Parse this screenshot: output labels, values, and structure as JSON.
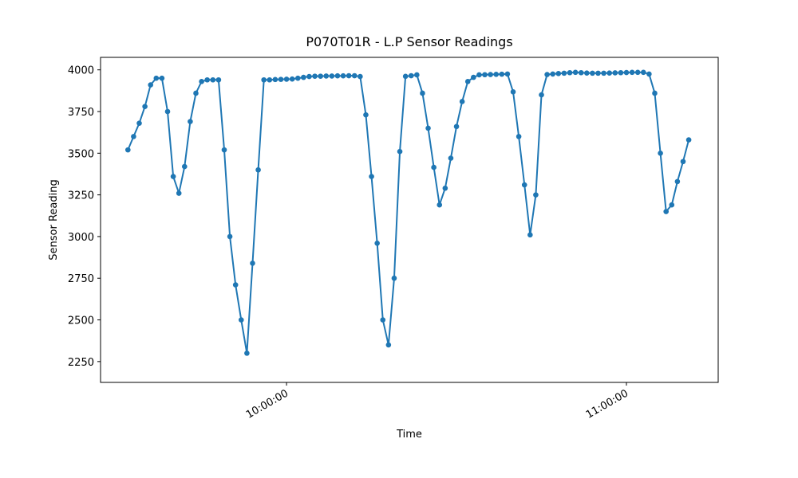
{
  "chart_data": {
    "type": "line",
    "title": "P070T01R - L.P Sensor Readings",
    "xlabel": "Time",
    "ylabel": "Sensor Reading",
    "x": [
      "09:32:00",
      "09:33:00",
      "09:34:00",
      "09:35:00",
      "09:36:00",
      "09:37:00",
      "09:38:00",
      "09:39:00",
      "09:40:00",
      "09:41:00",
      "09:42:00",
      "09:43:00",
      "09:44:00",
      "09:45:00",
      "09:46:00",
      "09:47:00",
      "09:48:00",
      "09:49:00",
      "09:50:00",
      "09:51:00",
      "09:52:00",
      "09:53:00",
      "09:54:00",
      "09:55:00",
      "09:56:00",
      "09:57:00",
      "09:58:00",
      "09:59:00",
      "10:00:00",
      "10:01:00",
      "10:02:00",
      "10:03:00",
      "10:04:00",
      "10:05:00",
      "10:06:00",
      "10:07:00",
      "10:08:00",
      "10:09:00",
      "10:10:00",
      "10:11:00",
      "10:12:00",
      "10:13:00",
      "10:14:00",
      "10:15:00",
      "10:16:00",
      "10:17:00",
      "10:18:00",
      "10:19:00",
      "10:20:00",
      "10:21:00",
      "10:22:00",
      "10:23:00",
      "10:24:00",
      "10:25:00",
      "10:26:00",
      "10:27:00",
      "10:28:00",
      "10:29:00",
      "10:30:00",
      "10:31:00",
      "10:32:00",
      "10:33:00",
      "10:34:00",
      "10:35:00",
      "10:36:00",
      "10:37:00",
      "10:38:00",
      "10:39:00",
      "10:40:00",
      "10:41:00",
      "10:42:00",
      "10:43:00",
      "10:44:00",
      "10:45:00",
      "10:46:00",
      "10:47:00",
      "10:48:00",
      "10:49:00",
      "10:50:00",
      "10:51:00",
      "10:52:00",
      "10:53:00",
      "10:54:00",
      "10:55:00",
      "10:56:00",
      "10:57:00",
      "10:58:00",
      "10:59:00",
      "11:00:00",
      "11:01:00",
      "11:02:00",
      "11:03:00",
      "11:04:00",
      "11:05:00",
      "11:06:00",
      "11:07:00",
      "11:08:00",
      "11:09:00",
      "11:10:00",
      "11:11:00"
    ],
    "series": [
      {
        "name": "L.P",
        "color": "#1f77b4",
        "values": [
          3520,
          3600,
          3680,
          3780,
          3910,
          3950,
          3950,
          3750,
          3360,
          3260,
          3420,
          3690,
          3860,
          3930,
          3940,
          3940,
          3940,
          3520,
          3000,
          2710,
          2500,
          2300,
          2840,
          3400,
          3940,
          3940,
          3942,
          3943,
          3944,
          3945,
          3950,
          3955,
          3960,
          3962,
          3962,
          3963,
          3963,
          3964,
          3964,
          3965,
          3965,
          3960,
          3730,
          3360,
          2960,
          2500,
          2350,
          2750,
          3510,
          3961,
          3965,
          3970,
          3860,
          3650,
          3415,
          3190,
          3290,
          3470,
          3660,
          3810,
          3930,
          3955,
          3970,
          3971,
          3972,
          3973,
          3974,
          3975,
          3868,
          3600,
          3310,
          3010,
          3250,
          3850,
          3972,
          3975,
          3978,
          3980,
          3983,
          3985,
          3983,
          3981,
          3980,
          3980,
          3980,
          3981,
          3982,
          3983,
          3984,
          3985,
          3985,
          3985,
          3975,
          3860,
          3500,
          3150,
          3190,
          3330,
          3450,
          3580
        ]
      }
    ],
    "xlim": [
      "09:27:10",
      "11:16:12"
    ],
    "xticks": [
      "10:00:00",
      "11:00:00"
    ],
    "ylim": [
      2125,
      4075
    ],
    "yticks": [
      2250,
      2500,
      2750,
      3000,
      3250,
      3500,
      3750,
      4000
    ],
    "grid": false
  }
}
